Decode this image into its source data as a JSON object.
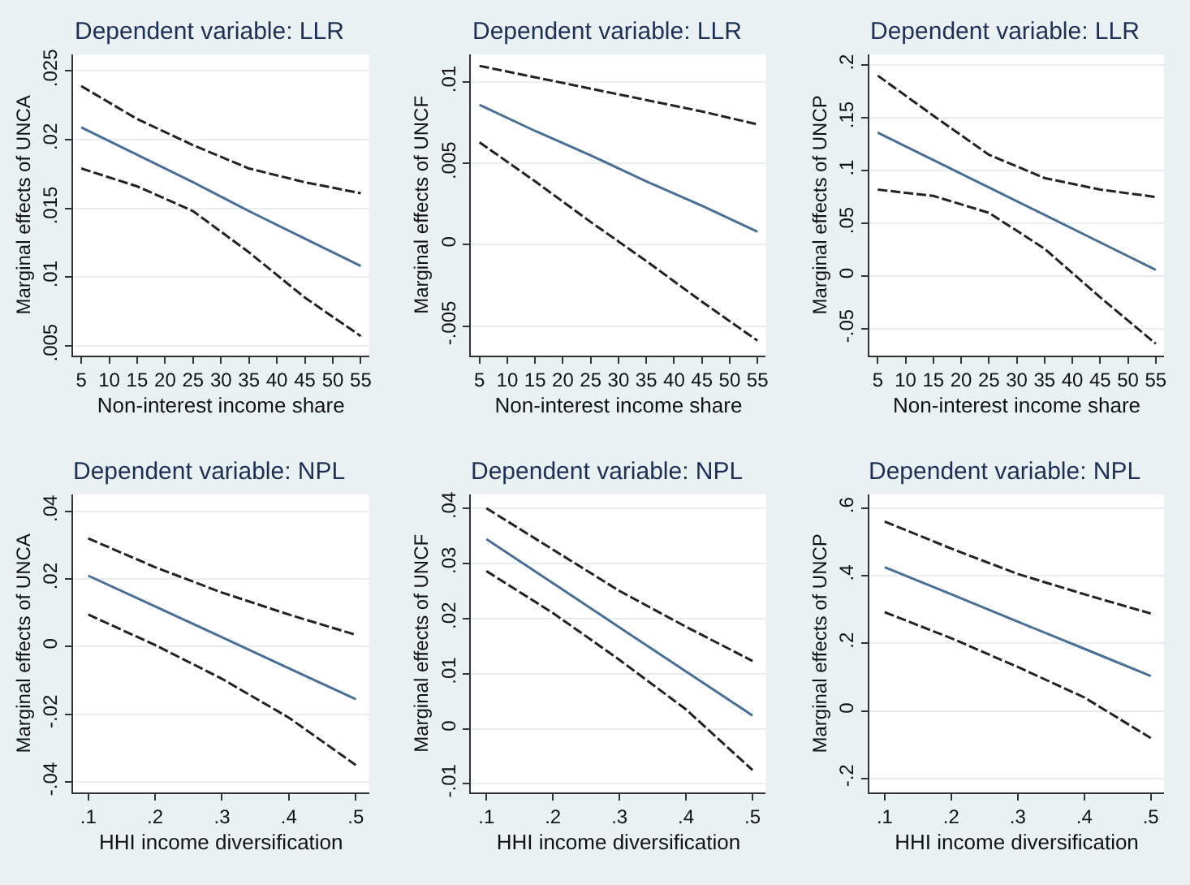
{
  "chart_data": [
    {
      "type": "line",
      "title": "Dependent variable: LLR",
      "xlabel": "Non-interest income share",
      "ylabel": "Marginal effects of UNCA",
      "x": [
        5,
        15,
        25,
        35,
        45,
        55
      ],
      "xlim": [
        3.5,
        56.5
      ],
      "xticks": [
        5,
        10,
        15,
        20,
        25,
        30,
        35,
        40,
        45,
        50,
        55
      ],
      "ylim": [
        0.0043,
        0.0262
      ],
      "yticks": [
        {
          "value": 0.005,
          "label": ".005"
        },
        {
          "value": 0.01,
          "label": ".01"
        },
        {
          "value": 0.015,
          "label": ".015"
        },
        {
          "value": 0.02,
          "label": ".02"
        },
        {
          "value": 0.025,
          "label": ".025"
        }
      ],
      "grid": "y",
      "series": [
        {
          "color": "#4a6f96",
          "line_style": "solid",
          "values": [
            0.0209,
            0.0189,
            0.0169,
            0.0148,
            0.0128,
            0.0108
          ]
        },
        {
          "color": "#222222",
          "line_style": "dashed",
          "values": [
            0.0239,
            0.0215,
            0.0196,
            0.0179,
            0.0169,
            0.0161
          ]
        },
        {
          "color": "#222222",
          "line_style": "dashed",
          "values": [
            0.0179,
            0.0166,
            0.0148,
            0.0118,
            0.0085,
            0.0057
          ]
        }
      ]
    },
    {
      "type": "line",
      "title": "Dependent variable: LLR",
      "xlabel": "Non-interest income share",
      "ylabel": "Marginal effects of UNCF",
      "x": [
        5,
        15,
        25,
        35,
        45,
        55
      ],
      "xlim": [
        3.5,
        56.5
      ],
      "xticks": [
        5,
        10,
        15,
        20,
        25,
        30,
        35,
        40,
        45,
        50,
        55
      ],
      "ylim": [
        -0.0068,
        0.0117
      ],
      "yticks": [
        {
          "value": -0.005,
          "label": "-.005"
        },
        0,
        {
          "value": 0.005,
          "label": ".005"
        },
        {
          "value": 0.01,
          "label": ".01"
        }
      ],
      "grid": "y",
      "series": [
        {
          "color": "#4a6f96",
          "line_style": "solid",
          "values": [
            0.0086,
            0.007,
            0.0055,
            0.0039,
            0.0024,
            0.0008
          ]
        },
        {
          "color": "#222222",
          "line_style": "dashed",
          "values": [
            0.011,
            0.0103,
            0.0096,
            0.0089,
            0.0082,
            0.0074
          ]
        },
        {
          "color": "#222222",
          "line_style": "dashed",
          "values": [
            0.0063,
            0.0039,
            0.0014,
            -0.001,
            -0.0035,
            -0.0059
          ]
        }
      ]
    },
    {
      "type": "line",
      "title": "Dependent variable: LLR",
      "xlabel": "Non-interest income share",
      "ylabel": "Marginal effects of UNCP",
      "x": [
        5,
        15,
        25,
        35,
        45,
        55
      ],
      "xlim": [
        3.5,
        56.5
      ],
      "xticks": [
        5,
        10,
        15,
        20,
        25,
        30,
        35,
        40,
        45,
        50,
        55
      ],
      "ylim": [
        -0.075,
        0.21
      ],
      "yticks": [
        {
          "value": -0.05,
          "label": "-.05"
        },
        0,
        {
          "value": 0.05,
          "label": ".05"
        },
        {
          "value": 0.1,
          "label": ".1"
        },
        {
          "value": 0.15,
          "label": ".15"
        },
        {
          "value": 0.2,
          "label": ".2"
        }
      ],
      "grid": "y",
      "series": [
        {
          "color": "#4a6f96",
          "line_style": "solid",
          "values": [
            0.136,
            0.11,
            0.084,
            0.058,
            0.032,
            0.006
          ]
        },
        {
          "color": "#222222",
          "line_style": "dashed",
          "values": [
            0.19,
            0.152,
            0.115,
            0.093,
            0.082,
            0.075
          ]
        },
        {
          "color": "#222222",
          "line_style": "dashed",
          "values": [
            0.082,
            0.076,
            0.06,
            0.026,
            -0.02,
            -0.064
          ]
        }
      ]
    },
    {
      "type": "line",
      "title": "Dependent variable: NPL",
      "xlabel": "HHI income diversification",
      "ylabel": "Marginal effects of UNCA",
      "x": [
        0.1,
        0.2,
        0.3,
        0.4,
        0.5
      ],
      "xlim": [
        0.077,
        0.52
      ],
      "xticks": [
        {
          "value": 0.1,
          "label": ".1"
        },
        {
          "value": 0.2,
          "label": ".2"
        },
        {
          "value": 0.3,
          "label": ".3"
        },
        {
          "value": 0.4,
          "label": ".4"
        },
        {
          "value": 0.5,
          "label": ".5"
        }
      ],
      "ylim": [
        -0.043,
        0.045
      ],
      "yticks": [
        {
          "value": -0.04,
          "label": "-.04"
        },
        {
          "value": -0.02,
          "label": "-.02"
        },
        0,
        {
          "value": 0.02,
          "label": ".02"
        },
        {
          "value": 0.04,
          "label": ".04"
        }
      ],
      "grid": "y",
      "series": [
        {
          "color": "#4a6f96",
          "line_style": "solid",
          "values": [
            0.021,
            0.0119,
            0.0028,
            -0.0064,
            -0.0155
          ]
        },
        {
          "color": "#222222",
          "line_style": "dashed",
          "values": [
            0.032,
            0.0235,
            0.016,
            0.0095,
            0.0035
          ]
        },
        {
          "color": "#222222",
          "line_style": "dashed",
          "values": [
            0.0095,
            0.0005,
            -0.0095,
            -0.021,
            -0.035
          ]
        }
      ]
    },
    {
      "type": "line",
      "title": "Dependent variable: NPL",
      "xlabel": "HHI income diversification",
      "ylabel": "Marginal effects of UNCF",
      "x": [
        0.1,
        0.2,
        0.3,
        0.4,
        0.5
      ],
      "xlim": [
        0.077,
        0.52
      ],
      "xticks": [
        {
          "value": 0.1,
          "label": ".1"
        },
        {
          "value": 0.2,
          "label": ".2"
        },
        {
          "value": 0.3,
          "label": ".3"
        },
        {
          "value": 0.4,
          "label": ".4"
        },
        {
          "value": 0.5,
          "label": ".5"
        }
      ],
      "ylim": [
        -0.0115,
        0.0425
      ],
      "yticks": [
        {
          "value": -0.01,
          "label": "-.01"
        },
        0,
        {
          "value": 0.01,
          "label": ".01"
        },
        {
          "value": 0.02,
          "label": ".02"
        },
        {
          "value": 0.03,
          "label": ".03"
        },
        {
          "value": 0.04,
          "label": ".04"
        }
      ],
      "grid": "y",
      "series": [
        {
          "color": "#4a6f96",
          "line_style": "solid",
          "values": [
            0.0344,
            0.0264,
            0.0184,
            0.0104,
            0.0024
          ]
        },
        {
          "color": "#222222",
          "line_style": "dashed",
          "values": [
            0.04,
            0.0325,
            0.025,
            0.0185,
            0.0123
          ]
        },
        {
          "color": "#222222",
          "line_style": "dashed",
          "values": [
            0.0286,
            0.021,
            0.0125,
            0.0035,
            -0.0075
          ]
        }
      ]
    },
    {
      "type": "line",
      "title": "Dependent variable: NPL",
      "xlabel": "HHI income diversification",
      "ylabel": "Marginal effects of UNCP",
      "x": [
        0.1,
        0.2,
        0.3,
        0.4,
        0.5
      ],
      "xlim": [
        0.077,
        0.52
      ],
      "xticks": [
        {
          "value": 0.1,
          "label": ".1"
        },
        {
          "value": 0.2,
          "label": ".2"
        },
        {
          "value": 0.3,
          "label": ".3"
        },
        {
          "value": 0.4,
          "label": ".4"
        },
        {
          "value": 0.5,
          "label": ".5"
        }
      ],
      "ylim": [
        -0.24,
        0.64
      ],
      "yticks": [
        {
          "value": -0.2,
          "label": "-.2"
        },
        0,
        {
          "value": 0.2,
          "label": ".2"
        },
        {
          "value": 0.4,
          "label": ".4"
        },
        {
          "value": 0.6,
          "label": ".6"
        }
      ],
      "grid": "y",
      "series": [
        {
          "color": "#4a6f96",
          "line_style": "solid",
          "values": [
            0.425,
            0.345,
            0.264,
            0.184,
            0.103
          ]
        },
        {
          "color": "#222222",
          "line_style": "dashed",
          "values": [
            0.56,
            0.48,
            0.405,
            0.345,
            0.288
          ]
        },
        {
          "color": "#222222",
          "line_style": "dashed",
          "values": [
            0.292,
            0.215,
            0.13,
            0.04,
            -0.08
          ]
        }
      ]
    }
  ]
}
